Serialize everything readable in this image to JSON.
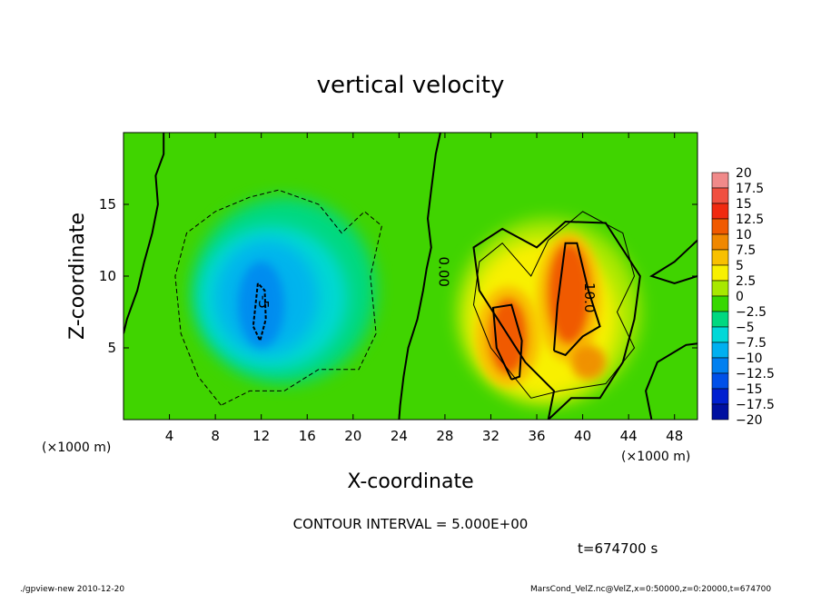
{
  "chart_data": {
    "type": "heatmap",
    "title": "vertical velocity",
    "xlabel": "X-coordinate",
    "ylabel": "Z-coordinate",
    "x_unit_label": "(×1000 m)",
    "y_unit_label": "(×1000 m)",
    "xlim": [
      0,
      50
    ],
    "ylim": [
      0,
      20
    ],
    "x_ticks": [
      4,
      8,
      12,
      16,
      20,
      24,
      28,
      32,
      36,
      40,
      44,
      48
    ],
    "y_ticks": [
      5,
      10,
      15
    ],
    "contour_interval_text": "CONTOUR INTERVAL = 5.000E+00",
    "time_text": "t=674700 s",
    "contour_labels": [
      {
        "text": "0.00",
        "x": 27.5,
        "z": 10.3
      },
      {
        "text": "10.0",
        "x": 40.2,
        "z": 8.5
      },
      {
        "text": "-5",
        "x": 11.8,
        "z": 8.2
      }
    ],
    "colorbar": {
      "levels": [
        20,
        17.5,
        15,
        12.5,
        10,
        7.5,
        5,
        2.5,
        0,
        -2.5,
        -5,
        -7.5,
        -10,
        -12.5,
        -15,
        -17.5,
        -20
      ],
      "labels": [
        "20",
        "17.5",
        "15",
        "12.5",
        "10",
        "7.5",
        "5",
        "2.5",
        "0",
        "−2.5",
        "−5",
        "−7.5",
        "−10",
        "−12.5",
        "−15",
        "−17.5",
        "−20"
      ],
      "colors": [
        "#f08a8a",
        "#f05040",
        "#f02a10",
        "#f05a00",
        "#f08800",
        "#f8c000",
        "#f8f000",
        "#a8e800",
        "#38d800",
        "#00d880",
        "#00d8d8",
        "#00b0f0",
        "#0080f0",
        "#0050e8",
        "#0020d0",
        "#0010a0",
        "#6020b0"
      ]
    },
    "features": [
      {
        "kind": "downdraft",
        "x": 12,
        "z": 8,
        "peak": -8
      },
      {
        "kind": "updraft",
        "x": 33.5,
        "z": 6,
        "peak": 14
      },
      {
        "kind": "updraft",
        "x": 38.5,
        "z": 9,
        "peak": 14
      },
      {
        "kind": "updraft",
        "x": 40.5,
        "z": 4,
        "peak": 11
      }
    ]
  },
  "footer": {
    "left": "./gpview-new  2010-12-20",
    "right": "MarsCond_VelZ.nc@VelZ,x=0:50000,z=0:20000,t=674700"
  }
}
